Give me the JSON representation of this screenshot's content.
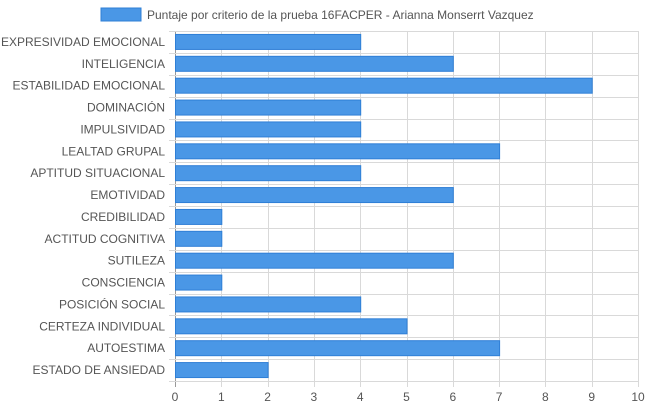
{
  "chart_data": {
    "type": "bar",
    "orientation": "horizontal",
    "legend": {
      "label": "Puntaje por criterio de la prueba 16FACPER - Arianna Monserrt Vazquez",
      "position": "top"
    },
    "categories": [
      "EXPRESIVIDAD EMOCIONAL",
      "INTELIGENCIA",
      "ESTABILIDAD EMOCIONAL",
      "DOMINACIÓN",
      "IMPULSIVIDAD",
      "LEALTAD GRUPAL",
      "APTITUD SITUACIONAL",
      "EMOTIVIDAD",
      "CREDIBILIDAD",
      "ACTITUD COGNITIVA",
      "SUTILEZA",
      "CONSCIENCIA",
      "POSICIÓN SOCIAL",
      "CERTEZA INDIVIDUAL",
      "AUTOESTIMA",
      "ESTADO DE ANSIEDAD"
    ],
    "series": [
      {
        "name": "Puntaje por criterio de la prueba 16FACPER - Arianna Monserrt Vazquez",
        "values": [
          4,
          6,
          9,
          4,
          4,
          7,
          4,
          6,
          1,
          1,
          6,
          1,
          4,
          5,
          7,
          2
        ]
      }
    ],
    "xlim": [
      0,
      10
    ],
    "xticks": [
      0,
      1,
      2,
      3,
      4,
      5,
      6,
      7,
      8,
      9,
      10
    ],
    "grid": true,
    "colors": {
      "bar_fill": "#4a97e6",
      "bar_stroke": "#2f7fd6",
      "grid": "#d9d9d9",
      "text": "#555555"
    }
  }
}
